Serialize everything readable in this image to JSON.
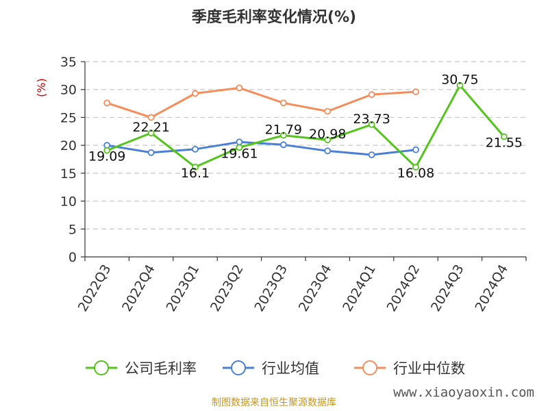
{
  "chart_data": {
    "type": "line",
    "title": "季度毛利率变化情况(%)",
    "ylabel": "(%)",
    "ylim": [
      0,
      35
    ],
    "yticks": [
      0,
      5,
      10,
      15,
      20,
      25,
      30,
      35
    ],
    "grid": true,
    "legend_position": "bottom",
    "categories": [
      "2022Q3",
      "2022Q4",
      "2023Q1",
      "2023Q2",
      "2023Q3",
      "2023Q4",
      "2024Q1",
      "2024Q2",
      "2024Q3",
      "2024Q4"
    ],
    "series": [
      {
        "name": "公司毛利率",
        "color": "#52c41a",
        "values": [
          19.09,
          22.21,
          16.1,
          19.61,
          21.79,
          20.98,
          23.73,
          16.08,
          30.75,
          21.55
        ],
        "labels": [
          "19.09",
          "22.21",
          "16.1",
          "19.61",
          "21.79",
          "20.98",
          "23.73",
          "16.08",
          "30.75",
          "21.55"
        ]
      },
      {
        "name": "行业均值",
        "color": "#4a7fd8",
        "values": [
          20.0,
          18.7,
          19.3,
          20.6,
          20.1,
          19.0,
          18.3,
          19.2,
          null,
          null
        ]
      },
      {
        "name": "行业中位数",
        "color": "#f58c5a",
        "values": [
          27.6,
          25.0,
          29.3,
          30.3,
          27.6,
          26.1,
          29.1,
          29.6,
          null,
          null
        ]
      }
    ]
  },
  "footer": {
    "source": "制图数据来自恒生聚源数据库",
    "watermark": "www.xiaoyaoxin.com"
  }
}
